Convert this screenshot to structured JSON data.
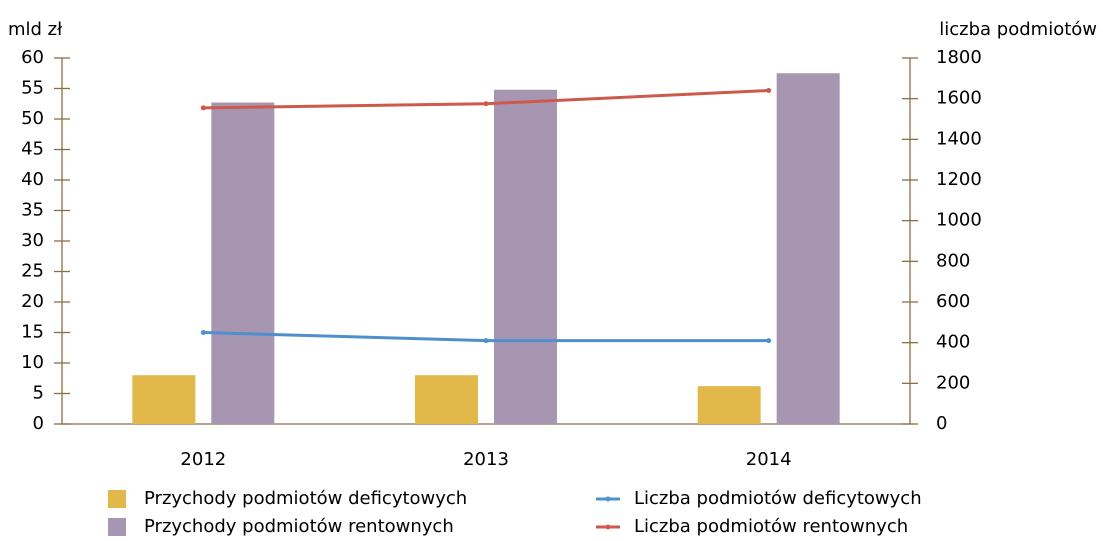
{
  "chart_data": {
    "type": "bar",
    "y_label": "mld zł",
    "y2_label": "liczba podmiotów",
    "categories": [
      "2012",
      "2013",
      "2014"
    ],
    "series": [
      {
        "name": "Przychody podmiotów deficytowych",
        "type": "bar",
        "color": "#e3b84a",
        "values": [
          8,
          8,
          6.2
        ]
      },
      {
        "name": "Przychody podmiotów rentownych",
        "type": "bar",
        "color": "#a796b2",
        "values": [
          52.7,
          54.8,
          57.5
        ]
      },
      {
        "name": "Liczba podmiotów deficytowych",
        "type": "line",
        "axis": "y2",
        "color": "#4f8fcc",
        "values": [
          450,
          410,
          410
        ]
      },
      {
        "name": "Liczba podmiotów rentownych",
        "type": "line",
        "axis": "y2",
        "color": "#cd5a4a",
        "values": [
          1555,
          1575,
          1640
        ]
      }
    ],
    "ylim": [
      0,
      60
    ],
    "yticks": [
      0,
      5,
      10,
      15,
      20,
      25,
      30,
      35,
      40,
      45,
      50,
      55,
      60
    ],
    "y2lim": [
      0,
      1800
    ],
    "y2ticks": [
      0,
      200,
      400,
      600,
      800,
      1000,
      1200,
      1400,
      1600,
      1800
    ],
    "legend": "bottom"
  }
}
